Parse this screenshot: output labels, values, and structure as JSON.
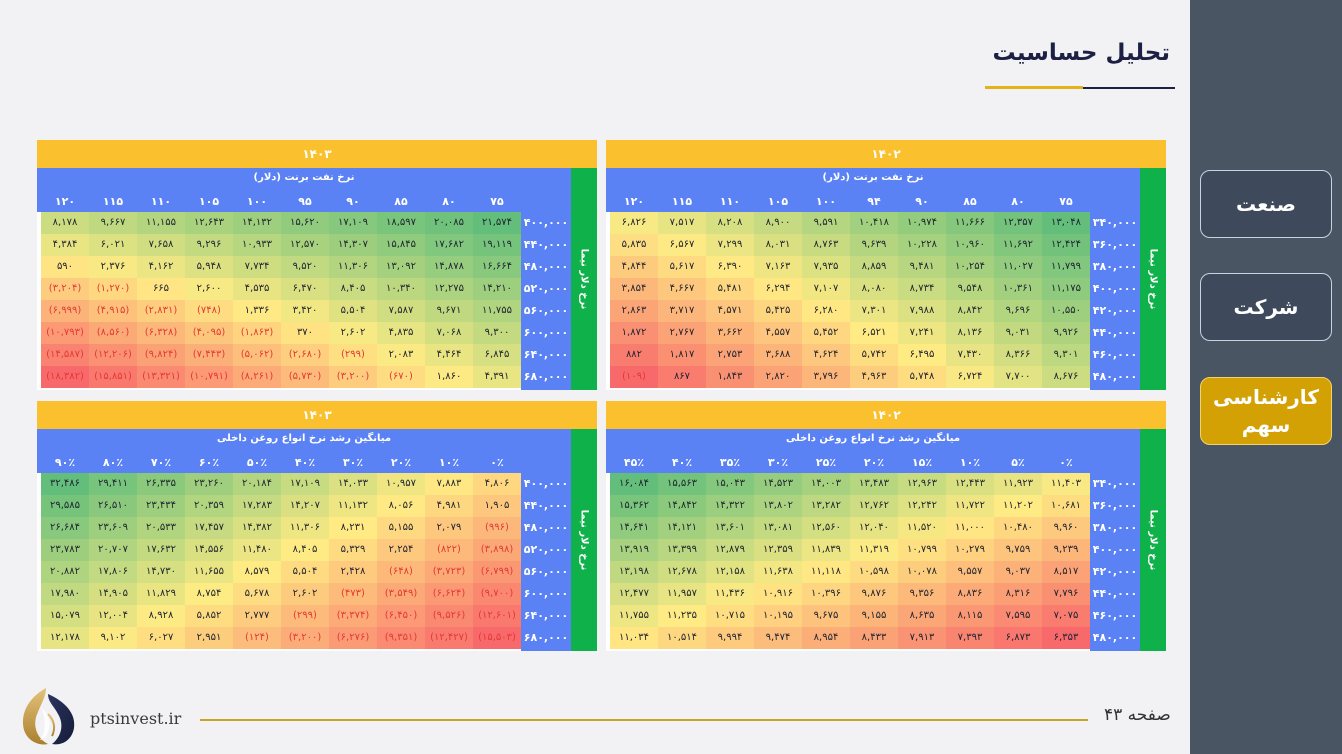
{
  "title": "تحلیل حساسیت",
  "nav": {
    "industry": "صنعت",
    "company": "شرکت",
    "expert": "کارشناسی سهم"
  },
  "footer": {
    "site": "ptsinvest.ir",
    "page": "صفحه ۴۳"
  },
  "panels": [
    {
      "year": "۱۴۰۳",
      "col_label": "نرخ نفت برنت (دلار)",
      "row_label": "نرخ دلار نیما",
      "cols": [
        "۷۵",
        "۸۰",
        "۸۵",
        "۹۰",
        "۹۵",
        "۱۰۰",
        "۱۰۵",
        "۱۱۰",
        "۱۱۵",
        "۱۲۰"
      ],
      "rows": [
        "۴۰۰,۰۰۰",
        "۴۴۰,۰۰۰",
        "۴۸۰,۰۰۰",
        "۵۲۰,۰۰۰",
        "۵۶۰,۰۰۰",
        "۶۰۰,۰۰۰",
        "۶۴۰,۰۰۰",
        "۶۸۰,۰۰۰"
      ],
      "cells": [
        [
          "۲۱,۵۷۴",
          "۲۰,۰۸۵",
          "۱۸,۵۹۷",
          "۱۷,۱۰۹",
          "۱۵,۶۲۰",
          "۱۴,۱۳۲",
          "۱۲,۶۴۳",
          "۱۱,۱۵۵",
          "۹,۶۶۷",
          "۸,۱۷۸"
        ],
        [
          "۱۹,۱۱۹",
          "۱۷,۶۸۲",
          "۱۵,۸۴۵",
          "۱۴,۳۰۷",
          "۱۲,۵۷۰",
          "۱۰,۹۳۳",
          "۹,۲۹۶",
          "۷,۶۵۸",
          "۶,۰۲۱",
          "۴,۳۸۴"
        ],
        [
          "۱۶,۶۶۴",
          "۱۴,۸۷۸",
          "۱۳,۰۹۲",
          "۱۱,۳۰۶",
          "۹,۵۲۰",
          "۷,۷۳۴",
          "۵,۹۴۸",
          "۴,۱۶۲",
          "۲,۳۷۶",
          "۵۹۰"
        ],
        [
          "۱۴,۲۱۰",
          "۱۲,۲۷۵",
          "۱۰,۳۴۰",
          "۸,۴۰۵",
          "۶,۴۷۰",
          "۴,۵۳۵",
          "۲,۶۰۰",
          "۶۶۵",
          "(۱,۲۷۰)",
          "(۳,۲۰۴)"
        ],
        [
          "۱۱,۷۵۵",
          "۹,۶۷۱",
          "۷,۵۸۷",
          "۵,۵۰۴",
          "۳,۴۲۰",
          "۱,۳۳۶",
          "(۷۴۸)",
          "(۲,۸۳۱)",
          "(۴,۹۱۵)",
          "(۶,۹۹۹)"
        ],
        [
          "۹,۳۰۰",
          "۷,۰۶۸",
          "۴,۸۳۵",
          "۲,۶۰۲",
          "۳۷۰",
          "(۱,۸۶۳)",
          "(۴,۰۹۵)",
          "(۶,۳۲۸)",
          "(۸,۵۶۰)",
          "(۱۰,۷۹۳)"
        ],
        [
          "۶,۸۴۵",
          "۴,۴۶۴",
          "۲,۰۸۳",
          "(۲۹۹)",
          "(۲,۶۸۰)",
          "(۵,۰۶۲)",
          "(۷,۴۴۳)",
          "(۹,۸۲۴)",
          "(۱۲,۲۰۶)",
          "(۱۴,۵۸۷)"
        ],
        [
          "۴,۳۹۱",
          "۱,۸۶۰",
          "(۶۷۰)",
          "(۳,۲۰۰)",
          "(۵,۷۳۰)",
          "(۸,۲۶۱)",
          "(۱۰,۷۹۱)",
          "(۱۳,۳۲۱)",
          "(۱۵,۸۵۱)",
          "(۱۸,۳۸۲)"
        ]
      ]
    },
    {
      "year": "۱۴۰۲",
      "col_label": "نرخ نفت برنت (دلار)",
      "row_label": "نرخ دلار نیما",
      "cols": [
        "۷۵",
        "۸۰",
        "۸۵",
        "۹۰",
        "۹۴",
        "۱۰۰",
        "۱۰۵",
        "۱۱۰",
        "۱۱۵",
        "۱۲۰"
      ],
      "rows": [
        "۳۴۰,۰۰۰",
        "۳۶۰,۰۰۰",
        "۳۸۰,۰۰۰",
        "۴۰۰,۰۰۰",
        "۴۲۰,۰۰۰",
        "۴۴۰,۰۰۰",
        "۴۶۰,۰۰۰",
        "۴۸۰,۰۰۰"
      ],
      "cells": [
        [
          "۱۳,۰۴۸",
          "۱۲,۳۵۷",
          "۱۱,۶۶۶",
          "۱۰,۹۷۴",
          "۱۰,۴۱۸",
          "۹,۵۹۱",
          "۸,۹۰۰",
          "۸,۲۰۸",
          "۷,۵۱۷",
          "۶,۸۲۶"
        ],
        [
          "۱۲,۴۲۴",
          "۱۱,۶۹۲",
          "۱۰,۹۶۰",
          "۱۰,۲۲۸",
          "۹,۶۳۹",
          "۸,۷۶۳",
          "۸,۰۳۱",
          "۷,۲۹۹",
          "۶,۵۶۷",
          "۵,۸۳۵"
        ],
        [
          "۱۱,۷۹۹",
          "۱۱,۰۲۷",
          "۱۰,۲۵۴",
          "۹,۴۸۱",
          "۸,۸۵۹",
          "۷,۹۳۵",
          "۷,۱۶۳",
          "۶,۳۹۰",
          "۵,۶۱۷",
          "۴,۸۴۴"
        ],
        [
          "۱۱,۱۷۵",
          "۱۰,۳۶۱",
          "۹,۵۴۸",
          "۸,۷۳۴",
          "۸,۰۸۰",
          "۷,۱۰۷",
          "۶,۲۹۴",
          "۵,۴۸۱",
          "۴,۶۶۷",
          "۳,۸۵۴"
        ],
        [
          "۱۰,۵۵۰",
          "۹,۶۹۶",
          "۸,۸۴۲",
          "۷,۹۸۸",
          "۷,۳۰۱",
          "۶,۲۸۰",
          "۵,۴۲۵",
          "۴,۵۷۱",
          "۳,۷۱۷",
          "۲,۸۶۳"
        ],
        [
          "۹,۹۲۶",
          "۹,۰۳۱",
          "۸,۱۳۶",
          "۷,۲۴۱",
          "۶,۵۲۱",
          "۵,۴۵۲",
          "۴,۵۵۷",
          "۳,۶۶۲",
          "۲,۷۶۷",
          "۱,۸۷۲"
        ],
        [
          "۹,۳۰۱",
          "۸,۳۶۶",
          "۷,۴۳۰",
          "۶,۴۹۵",
          "۵,۷۴۲",
          "۴,۶۲۴",
          "۳,۶۸۸",
          "۲,۷۵۳",
          "۱,۸۱۷",
          "۸۸۲"
        ],
        [
          "۸,۶۷۶",
          "۷,۷۰۰",
          "۶,۷۲۴",
          "۵,۷۴۸",
          "۴,۹۶۳",
          "۳,۷۹۶",
          "۲,۸۲۰",
          "۱,۸۴۳",
          "۸۶۷",
          "(۱۰۹)"
        ]
      ]
    },
    {
      "year": "۱۴۰۳",
      "col_label": "میانگین رشد نرخ انواع روغن داخلی",
      "row_label": "نرخ دلار نیما",
      "cols": [
        "۰٪",
        "۱۰٪",
        "۲۰٪",
        "۳۰٪",
        "۴۰٪",
        "۵۰٪",
        "۶۰٪",
        "۷۰٪",
        "۸۰٪",
        "۹۰٪"
      ],
      "rows": [
        "۴۰۰,۰۰۰",
        "۴۴۰,۰۰۰",
        "۴۸۰,۰۰۰",
        "۵۲۰,۰۰۰",
        "۵۶۰,۰۰۰",
        "۶۰۰,۰۰۰",
        "۶۴۰,۰۰۰",
        "۶۸۰,۰۰۰"
      ],
      "cells": [
        [
          "۴,۸۰۶",
          "۷,۸۸۳",
          "۱۰,۹۵۷",
          "۱۴,۰۳۳",
          "۱۷,۱۰۹",
          "۲۰,۱۸۴",
          "۲۳,۲۶۰",
          "۲۶,۳۳۵",
          "۲۹,۴۱۱",
          "۳۲,۴۸۶"
        ],
        [
          "۱,۹۰۵",
          "۴,۹۸۱",
          "۸,۰۵۶",
          "۱۱,۱۳۲",
          "۱۴,۲۰۷",
          "۱۷,۲۸۳",
          "۲۰,۳۵۹",
          "۲۳,۴۳۴",
          "۲۶,۵۱۰",
          "۲۹,۵۸۵"
        ],
        [
          "(۹۹۶)",
          "۲,۰۷۹",
          "۵,۱۵۵",
          "۸,۲۳۱",
          "۱۱,۳۰۶",
          "۱۴,۳۸۲",
          "۱۷,۴۵۷",
          "۲۰,۵۳۳",
          "۲۳,۶۰۹",
          "۲۶,۶۸۴"
        ],
        [
          "(۳,۸۹۸)",
          "(۸۲۲)",
          "۲,۲۵۴",
          "۵,۳۲۹",
          "۸,۴۰۵",
          "۱۱,۴۸۰",
          "۱۴,۵۵۶",
          "۱۷,۶۳۲",
          "۲۰,۷۰۷",
          "۲۳,۷۸۳"
        ],
        [
          "(۶,۷۹۹)",
          "(۳,۷۲۳)",
          "(۶۴۸)",
          "۲,۴۲۸",
          "۵,۵۰۴",
          "۸,۵۷۹",
          "۱۱,۶۵۵",
          "۱۴,۷۳۰",
          "۱۷,۸۰۶",
          "۲۰,۸۸۲"
        ],
        [
          "(۹,۷۰۰)",
          "(۶,۶۲۴)",
          "(۳,۵۴۹)",
          "(۴۷۳)",
          "۲,۶۰۲",
          "۵,۶۷۸",
          "۸,۷۵۴",
          "۱۱,۸۲۹",
          "۱۴,۹۰۵",
          "۱۷,۹۸۰"
        ],
        [
          "(۱۲,۶۰۱)",
          "(۹,۵۲۶)",
          "(۶,۴۵۰)",
          "(۳,۳۷۴)",
          "(۲۹۹)",
          "۲,۷۷۷",
          "۵,۸۵۲",
          "۸,۹۲۸",
          "۱۲,۰۰۴",
          "۱۵,۰۷۹"
        ],
        [
          "(۱۵,۵۰۳)",
          "(۱۲,۴۲۷)",
          "(۹,۳۵۱)",
          "(۶,۲۷۶)",
          "(۳,۲۰۰)",
          "(۱۲۴)",
          "۲,۹۵۱",
          "۶,۰۲۷",
          "۹,۱۰۲",
          "۱۲,۱۷۸"
        ]
      ]
    },
    {
      "year": "۱۴۰۲",
      "col_label": "میانگین رشد نرخ انواع روغن داخلی",
      "row_label": "نرخ دلار نیما",
      "cols": [
        "۰٪",
        "۵٪",
        "۱۰٪",
        "۱۵٪",
        "۲۰٪",
        "۲۵٪",
        "۳۰٪",
        "۳۵٪",
        "۴۰٪",
        "۴۵٪"
      ],
      "rows": [
        "۳۴۰,۰۰۰",
        "۳۶۰,۰۰۰",
        "۳۸۰,۰۰۰",
        "۴۰۰,۰۰۰",
        "۴۲۰,۰۰۰",
        "۴۴۰,۰۰۰",
        "۴۶۰,۰۰۰",
        "۴۸۰,۰۰۰"
      ],
      "cells": [
        [
          "۱۱,۴۰۳",
          "۱۱,۹۲۳",
          "۱۲,۴۴۳",
          "۱۲,۹۶۳",
          "۱۳,۴۸۳",
          "۱۴,۰۰۳",
          "۱۴,۵۲۳",
          "۱۵,۰۴۳",
          "۱۵,۵۶۳",
          "۱۶,۰۸۴"
        ],
        [
          "۱۰,۶۸۱",
          "۱۱,۲۰۲",
          "۱۱,۷۲۲",
          "۱۲,۲۴۲",
          "۱۲,۷۶۲",
          "۱۳,۲۸۲",
          "۱۳,۸۰۲",
          "۱۴,۳۲۲",
          "۱۴,۸۴۲",
          "۱۵,۳۶۲"
        ],
        [
          "۹,۹۶۰",
          "۱۰,۴۸۰",
          "۱۱,۰۰۰",
          "۱۱,۵۲۰",
          "۱۲,۰۴۰",
          "۱۲,۵۶۰",
          "۱۳,۰۸۱",
          "۱۳,۶۰۱",
          "۱۴,۱۲۱",
          "۱۴,۶۴۱"
        ],
        [
          "۹,۲۳۹",
          "۹,۷۵۹",
          "۱۰,۲۷۹",
          "۱۰,۷۹۹",
          "۱۱,۳۱۹",
          "۱۱,۸۳۹",
          "۱۲,۳۵۹",
          "۱۲,۸۷۹",
          "۱۳,۳۹۹",
          "۱۳,۹۱۹"
        ],
        [
          "۸,۵۱۷",
          "۹,۰۳۷",
          "۹,۵۵۷",
          "۱۰,۰۷۸",
          "۱۰,۵۹۸",
          "۱۱,۱۱۸",
          "۱۱,۶۳۸",
          "۱۲,۱۵۸",
          "۱۲,۶۷۸",
          "۱۳,۱۹۸"
        ],
        [
          "۷,۷۹۶",
          "۸,۳۱۶",
          "۸,۸۳۶",
          "۹,۳۵۶",
          "۹,۸۷۶",
          "۱۰,۳۹۶",
          "۱۰,۹۱۶",
          "۱۱,۴۳۶",
          "۱۱,۹۵۷",
          "۱۲,۴۷۷"
        ],
        [
          "۷,۰۷۵",
          "۷,۵۹۵",
          "۸,۱۱۵",
          "۸,۶۳۵",
          "۹,۱۵۵",
          "۹,۶۷۵",
          "۱۰,۱۹۵",
          "۱۰,۷۱۵",
          "۱۱,۲۳۵",
          "۱۱,۷۵۵"
        ],
        [
          "۶,۳۵۳",
          "۶,۸۷۳",
          "۷,۳۹۳",
          "۷,۹۱۳",
          "۸,۴۳۳",
          "۸,۹۵۴",
          "۹,۴۷۴",
          "۹,۹۹۴",
          "۱۰,۵۱۴",
          "۱۱,۰۳۴"
        ]
      ]
    }
  ]
}
